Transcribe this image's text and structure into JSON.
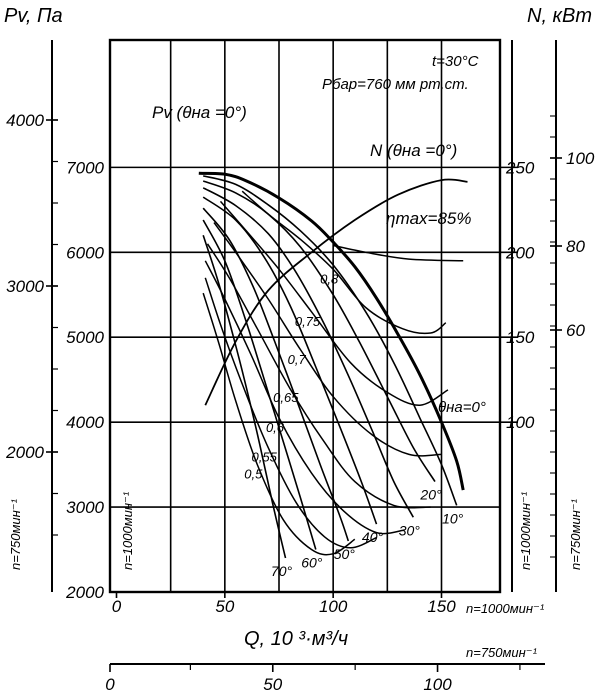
{
  "chart_data": {
    "type": "line",
    "axes": {
      "left_title": "Pv, Па",
      "right_title": "N, кВт",
      "bottom_title": "Q, 10 ³·м³/ч",
      "x_1000_ticks": [
        "0",
        "50",
        "100",
        "150"
      ],
      "x_750_ticks": [
        "0",
        "50",
        "100"
      ],
      "p_1000_ticks": [
        "2000",
        "3000",
        "4000",
        "5000",
        "6000",
        "7000"
      ],
      "p_750_ticks": [
        "2000",
        "3000",
        "4000"
      ],
      "n_1000_ticks": [
        "100",
        "150",
        "200",
        "250"
      ],
      "n_750_ticks": [
        "60",
        "80",
        "100"
      ],
      "x_1000_range": [
        -3,
        177
      ],
      "p_1000_range": [
        2000,
        8500
      ],
      "speed_1000": "n=1000мин⁻¹",
      "speed_750": "n=750мин⁻¹"
    },
    "conditions": [
      "t=30°C",
      "Pбар=760 мм рт.ст."
    ],
    "labels": {
      "pv_curve": "Pv (θна =0°)",
      "n_curve": "N (θна =0°)",
      "eta_max": "ηmax=85%",
      "theta_zero": "θна=0°"
    },
    "pressure_curves": [
      {
        "angle": "0°",
        "points": [
          [
            38,
            6930
          ],
          [
            50,
            6920
          ],
          [
            60,
            6840
          ],
          [
            75,
            6640
          ],
          [
            90,
            6370
          ],
          [
            100,
            6120
          ],
          [
            110,
            5830
          ],
          [
            120,
            5460
          ],
          [
            130,
            5030
          ],
          [
            140,
            4560
          ],
          [
            150,
            4000
          ],
          [
            157,
            3540
          ],
          [
            160,
            3200
          ]
        ]
      },
      {
        "angle": "10°",
        "points": [
          [
            40,
            6900
          ],
          [
            55,
            6800
          ],
          [
            70,
            6560
          ],
          [
            85,
            6250
          ],
          [
            100,
            5850
          ],
          [
            115,
            5300
          ],
          [
            128,
            4700
          ],
          [
            140,
            4050
          ],
          [
            150,
            3500
          ],
          [
            157,
            3020
          ]
        ]
      },
      {
        "angle": "20°",
        "points": [
          [
            40,
            6840
          ],
          [
            55,
            6700
          ],
          [
            70,
            6450
          ],
          [
            85,
            6060
          ],
          [
            100,
            5500
          ],
          [
            112,
            4950
          ],
          [
            125,
            4300
          ],
          [
            137,
            3700
          ],
          [
            147,
            3300
          ]
        ]
      },
      {
        "angle": "30°",
        "points": [
          [
            40,
            6760
          ],
          [
            55,
            6550
          ],
          [
            70,
            6220
          ],
          [
            82,
            5800
          ],
          [
            95,
            5200
          ],
          [
            107,
            4550
          ],
          [
            118,
            3900
          ],
          [
            128,
            3300
          ],
          [
            137,
            2880
          ]
        ]
      },
      {
        "angle": "40°",
        "points": [
          [
            40,
            6650
          ],
          [
            55,
            6380
          ],
          [
            68,
            5950
          ],
          [
            80,
            5380
          ],
          [
            92,
            4650
          ],
          [
            103,
            3950
          ],
          [
            113,
            3300
          ],
          [
            120,
            2800
          ]
        ]
      },
      {
        "angle": "50°",
        "points": [
          [
            40,
            6520
          ],
          [
            52,
            6150
          ],
          [
            63,
            5600
          ],
          [
            73,
            4950
          ],
          [
            84,
            4200
          ],
          [
            94,
            3500
          ],
          [
            103,
            2900
          ],
          [
            107,
            2600
          ]
        ]
      },
      {
        "angle": "60°",
        "points": [
          [
            40,
            6380
          ],
          [
            50,
            5900
          ],
          [
            59,
            5250
          ],
          [
            67,
            4600
          ],
          [
            76,
            3850
          ],
          [
            85,
            3100
          ],
          [
            92,
            2500
          ]
        ]
      },
      {
        "angle": "70°",
        "points": [
          [
            40,
            6200
          ],
          [
            47,
            5650
          ],
          [
            54,
            5000
          ],
          [
            60,
            4400
          ],
          [
            66,
            3750
          ],
          [
            72,
            3050
          ],
          [
            78,
            2400
          ]
        ]
      }
    ],
    "power_curve": {
      "points": [
        [
          41,
          4200
        ],
        [
          55,
          4950
        ],
        [
          70,
          5550
        ],
        [
          90,
          6000
        ],
        [
          110,
          6380
        ],
        [
          130,
          6680
        ],
        [
          150,
          6850
        ],
        [
          162,
          6830
        ]
      ]
    },
    "efficiency_lines": [
      {
        "eta": "0,8",
        "points": [
          [
            58,
            6720
          ],
          [
            70,
            6450
          ],
          [
            85,
            6150
          ],
          [
            100,
            5800
          ],
          [
            115,
            5350
          ],
          [
            132,
            5100
          ],
          [
            145,
            5050
          ],
          [
            152,
            5170
          ]
        ]
      },
      {
        "eta": "0,75",
        "points": [
          [
            48,
            6600
          ],
          [
            60,
            6250
          ],
          [
            75,
            5800
          ],
          [
            90,
            5300
          ],
          [
            108,
            4700
          ],
          [
            125,
            4350
          ],
          [
            140,
            4200
          ],
          [
            153,
            4380
          ]
        ]
      },
      {
        "eta": "0,7",
        "points": [
          [
            45,
            6350
          ],
          [
            55,
            6000
          ],
          [
            70,
            5450
          ],
          [
            85,
            4850
          ],
          [
            100,
            4300
          ],
          [
            118,
            3850
          ],
          [
            135,
            3620
          ],
          [
            150,
            3620
          ]
        ]
      },
      {
        "eta": "0,65",
        "points": [
          [
            42,
            6100
          ],
          [
            52,
            5700
          ],
          [
            65,
            5100
          ],
          [
            80,
            4400
          ],
          [
            95,
            3800
          ],
          [
            110,
            3300
          ],
          [
            128,
            3020
          ],
          [
            145,
            3000
          ]
        ]
      },
      {
        "eta": "0,6",
        "points": [
          [
            41,
            5900
          ],
          [
            50,
            5450
          ],
          [
            62,
            4800
          ],
          [
            75,
            4050
          ],
          [
            90,
            3400
          ],
          [
            105,
            2950
          ],
          [
            120,
            2700
          ],
          [
            133,
            2730
          ]
        ]
      },
      {
        "eta": "0,55",
        "points": [
          [
            41,
            5700
          ],
          [
            48,
            5150
          ],
          [
            58,
            4450
          ],
          [
            70,
            3700
          ],
          [
            83,
            3050
          ],
          [
            96,
            2650
          ],
          [
            108,
            2520
          ],
          [
            120,
            2640
          ]
        ]
      },
      {
        "eta": "0,5",
        "points": [
          [
            40,
            5520
          ],
          [
            47,
            4950
          ],
          [
            55,
            4250
          ],
          [
            65,
            3500
          ],
          [
            77,
            2850
          ],
          [
            90,
            2500
          ],
          [
            100,
            2450
          ],
          [
            110,
            2620
          ]
        ]
      },
      {
        "eta": "max",
        "points": [
          [
            100,
            6080
          ],
          [
            115,
            6000
          ],
          [
            135,
            5920
          ],
          [
            160,
            5900
          ]
        ]
      }
    ],
    "pv_0_to_0": "θна=0°"
  }
}
